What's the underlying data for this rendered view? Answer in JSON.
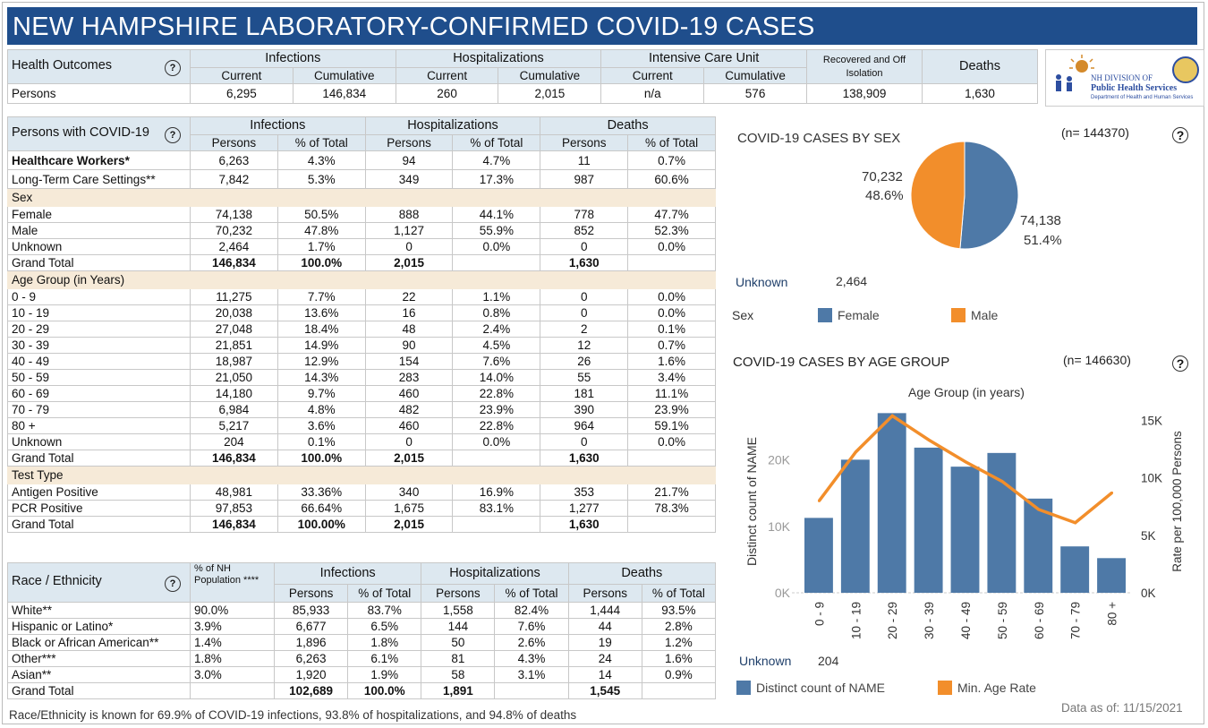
{
  "title": "NEW HAMPSHIRE LABORATORY-CONFIRMED COVID-19 CASES",
  "help_icon": "?",
  "health_outcomes": {
    "label": "Health Outcomes",
    "groups": [
      "Infections",
      "Hospitalizations",
      "Intensive Care Unit",
      "Recovered and Off Isolation",
      "Deaths"
    ],
    "subheaders": [
      "Current",
      "Cumulative",
      "Current",
      "Cumulative",
      "Current",
      "Cumulative"
    ],
    "row_label": "Persons",
    "values": [
      "6,295",
      "146,834",
      "260",
      "2,015",
      "n/a",
      "576",
      "138,909",
      "1,630"
    ]
  },
  "logo": {
    "text": "NH DIVISION OF Public Health Services",
    "subtext": "Department of Health and Human Services"
  },
  "persons_table": {
    "label": "Persons with COVID-19",
    "groups": [
      "Infections",
      "Hospitalizations",
      "Deaths"
    ],
    "subheaders": [
      "Persons",
      "% of Total",
      "Persons",
      "% of Total",
      "Persons",
      "% of Total"
    ],
    "rows": [
      {
        "label": "Healthcare Workers*",
        "bold": true,
        "values": [
          "6,263",
          "4.3%",
          "94",
          "4.7%",
          "11",
          "0.7%"
        ]
      },
      {
        "label": "Long-Term Care Settings**",
        "values": [
          "7,842",
          "5.3%",
          "349",
          "17.3%",
          "987",
          "60.6%"
        ]
      },
      {
        "section": "Sex"
      },
      {
        "label": "Female",
        "values": [
          "74,138",
          "50.5%",
          "888",
          "44.1%",
          "778",
          "47.7%"
        ]
      },
      {
        "label": "Male",
        "values": [
          "70,232",
          "47.8%",
          "1,127",
          "55.9%",
          "852",
          "52.3%"
        ]
      },
      {
        "label": "Unknown",
        "values": [
          "2,464",
          "1.7%",
          "0",
          "0.0%",
          "0",
          "0.0%"
        ]
      },
      {
        "label": "Grand Total",
        "total": true,
        "values": [
          "146,834",
          "100.0%",
          "2,015",
          "",
          "1,630",
          ""
        ]
      },
      {
        "section": "Age Group (in Years)"
      },
      {
        "label": "0 - 9",
        "values": [
          "11,275",
          "7.7%",
          "22",
          "1.1%",
          "0",
          "0.0%"
        ]
      },
      {
        "label": "10 - 19",
        "values": [
          "20,038",
          "13.6%",
          "16",
          "0.8%",
          "0",
          "0.0%"
        ]
      },
      {
        "label": "20 - 29",
        "values": [
          "27,048",
          "18.4%",
          "48",
          "2.4%",
          "2",
          "0.1%"
        ]
      },
      {
        "label": "30 - 39",
        "values": [
          "21,851",
          "14.9%",
          "90",
          "4.5%",
          "12",
          "0.7%"
        ]
      },
      {
        "label": "40 - 49",
        "values": [
          "18,987",
          "12.9%",
          "154",
          "7.6%",
          "26",
          "1.6%"
        ]
      },
      {
        "label": "50 - 59",
        "values": [
          "21,050",
          "14.3%",
          "283",
          "14.0%",
          "55",
          "3.4%"
        ]
      },
      {
        "label": "60 - 69",
        "values": [
          "14,180",
          "9.7%",
          "460",
          "22.8%",
          "181",
          "11.1%"
        ]
      },
      {
        "label": "70 - 79",
        "values": [
          "6,984",
          "4.8%",
          "482",
          "23.9%",
          "390",
          "23.9%"
        ]
      },
      {
        "label": "80 +",
        "values": [
          "5,217",
          "3.6%",
          "460",
          "22.8%",
          "964",
          "59.1%"
        ]
      },
      {
        "label": "Unknown",
        "values": [
          "204",
          "0.1%",
          "0",
          "0.0%",
          "0",
          "0.0%"
        ]
      },
      {
        "label": "Grand Total",
        "total": true,
        "values": [
          "146,834",
          "100.0%",
          "2,015",
          "",
          "1,630",
          ""
        ]
      },
      {
        "section": "Test Type"
      },
      {
        "label": "Antigen Positive",
        "values": [
          "48,981",
          "33.36%",
          "340",
          "16.9%",
          "353",
          "21.7%"
        ]
      },
      {
        "label": "PCR Positive",
        "values": [
          "97,853",
          "66.64%",
          "1,675",
          "83.1%",
          "1,277",
          "78.3%"
        ]
      },
      {
        "label": "Grand Total",
        "total": true,
        "values": [
          "146,834",
          "100.00%",
          "2,015",
          "",
          "1,630",
          ""
        ]
      }
    ]
  },
  "race_table": {
    "label": "Race / Ethnicity",
    "pop_header": "% of NH Population ****",
    "groups": [
      "Infections",
      "Hospitalizations",
      "Deaths"
    ],
    "subheaders": [
      "Persons",
      "% of Total",
      "Persons",
      "% of Total",
      "Persons",
      "% of Total"
    ],
    "rows": [
      {
        "label": "White**",
        "values": [
          "90.0%",
          "85,933",
          "83.7%",
          "1,558",
          "82.4%",
          "1,444",
          "93.5%"
        ]
      },
      {
        "label": "Hispanic or Latino*",
        "values": [
          "3.9%",
          "6,677",
          "6.5%",
          "144",
          "7.6%",
          "44",
          "2.8%"
        ]
      },
      {
        "label": "Black or African American**",
        "values": [
          "1.4%",
          "1,896",
          "1.8%",
          "50",
          "2.6%",
          "19",
          "1.2%"
        ]
      },
      {
        "label": "Other***",
        "values": [
          "1.8%",
          "6,263",
          "6.1%",
          "81",
          "4.3%",
          "24",
          "1.6%"
        ]
      },
      {
        "label": "Asian**",
        "values": [
          "3.0%",
          "1,920",
          "1.9%",
          "58",
          "3.1%",
          "14",
          "0.9%"
        ]
      },
      {
        "label": "Grand Total",
        "total": true,
        "values": [
          "",
          "102,689",
          "100.0%",
          "1,891",
          "",
          "1,545",
          ""
        ]
      }
    ]
  },
  "footnote": "Race/Ethnicity is known for 69.9% of COVID-19 infections, 93.8% of hospitalizations, and 94.8% of deaths",
  "data_as_of": "Data as of:  11/15/2021",
  "colors": {
    "title_bg": "#1f4e8c",
    "female": "#4e79a7",
    "male": "#f28e2b",
    "header_bg": "#dde8f0",
    "section_bg": "#f6ead8"
  },
  "chart_data": [
    {
      "type": "pie",
      "title": "COVID-19 CASES BY SEX",
      "n_label": "(n= 144370)",
      "slices": [
        {
          "name": "Female",
          "value": 74138,
          "label": "74,138",
          "pct": "51.4%"
        },
        {
          "name": "Male",
          "value": 70232,
          "label": "70,232",
          "pct": "48.6%"
        }
      ],
      "unknown_label": "Unknown",
      "unknown_value": "2,464",
      "legend_title": "Sex",
      "legend": [
        "Female",
        "Male"
      ]
    },
    {
      "type": "bar+line",
      "title": "COVID-19 CASES BY AGE GROUP",
      "n_label": "(n= 146630)",
      "xlabel": "Age Group (in years)",
      "ylabel": "Distinct count of NAME",
      "y2label": "Rate per 100,000 Persons",
      "categories": [
        "0 - 9",
        "10 - 19",
        "20 - 29",
        "30 - 39",
        "40 - 49",
        "50 - 59",
        "60 - 69",
        "70 - 79",
        "80 +"
      ],
      "series": [
        {
          "name": "Distinct count of NAME",
          "type": "bar",
          "values": [
            11275,
            20038,
            27048,
            21851,
            18987,
            21050,
            14180,
            6984,
            5217
          ]
        },
        {
          "name": "Min. Age Rate",
          "type": "line",
          "axis": "right",
          "values": [
            8000,
            12250,
            15400,
            13300,
            11400,
            9700,
            7250,
            6100,
            8700
          ]
        }
      ],
      "ylim": [
        0,
        27500
      ],
      "yticks": [
        "0K",
        "10K",
        "20K"
      ],
      "y2lim": [
        0,
        15900
      ],
      "y2ticks": [
        "0K",
        "5K",
        "10K",
        "15K"
      ],
      "unknown_label": "Unknown",
      "unknown_value": "204",
      "legend": [
        "Distinct count of NAME",
        "Min. Age Rate"
      ]
    }
  ]
}
